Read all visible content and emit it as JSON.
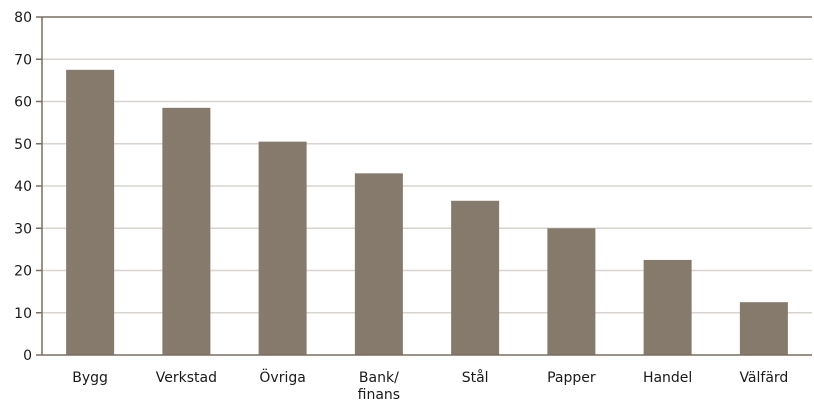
{
  "chart_data": {
    "type": "bar",
    "categories": [
      "Bygg",
      "Verkstad",
      "Övriga",
      "Bank/\nfinans",
      "Stål",
      "Papper",
      "Handel",
      "Välfärd"
    ],
    "values": [
      67.5,
      58.5,
      50.5,
      43,
      36.5,
      30,
      22.5,
      12.5
    ],
    "title": "",
    "xlabel": "",
    "ylabel": "",
    "ylim": [
      0,
      80
    ],
    "yticks": [
      0,
      10,
      20,
      30,
      40,
      50,
      60,
      70,
      80
    ],
    "grid": true,
    "colors": {
      "bar": "#857a6b",
      "axis": "#7a6e60",
      "grid": "#d9d5ce"
    }
  }
}
